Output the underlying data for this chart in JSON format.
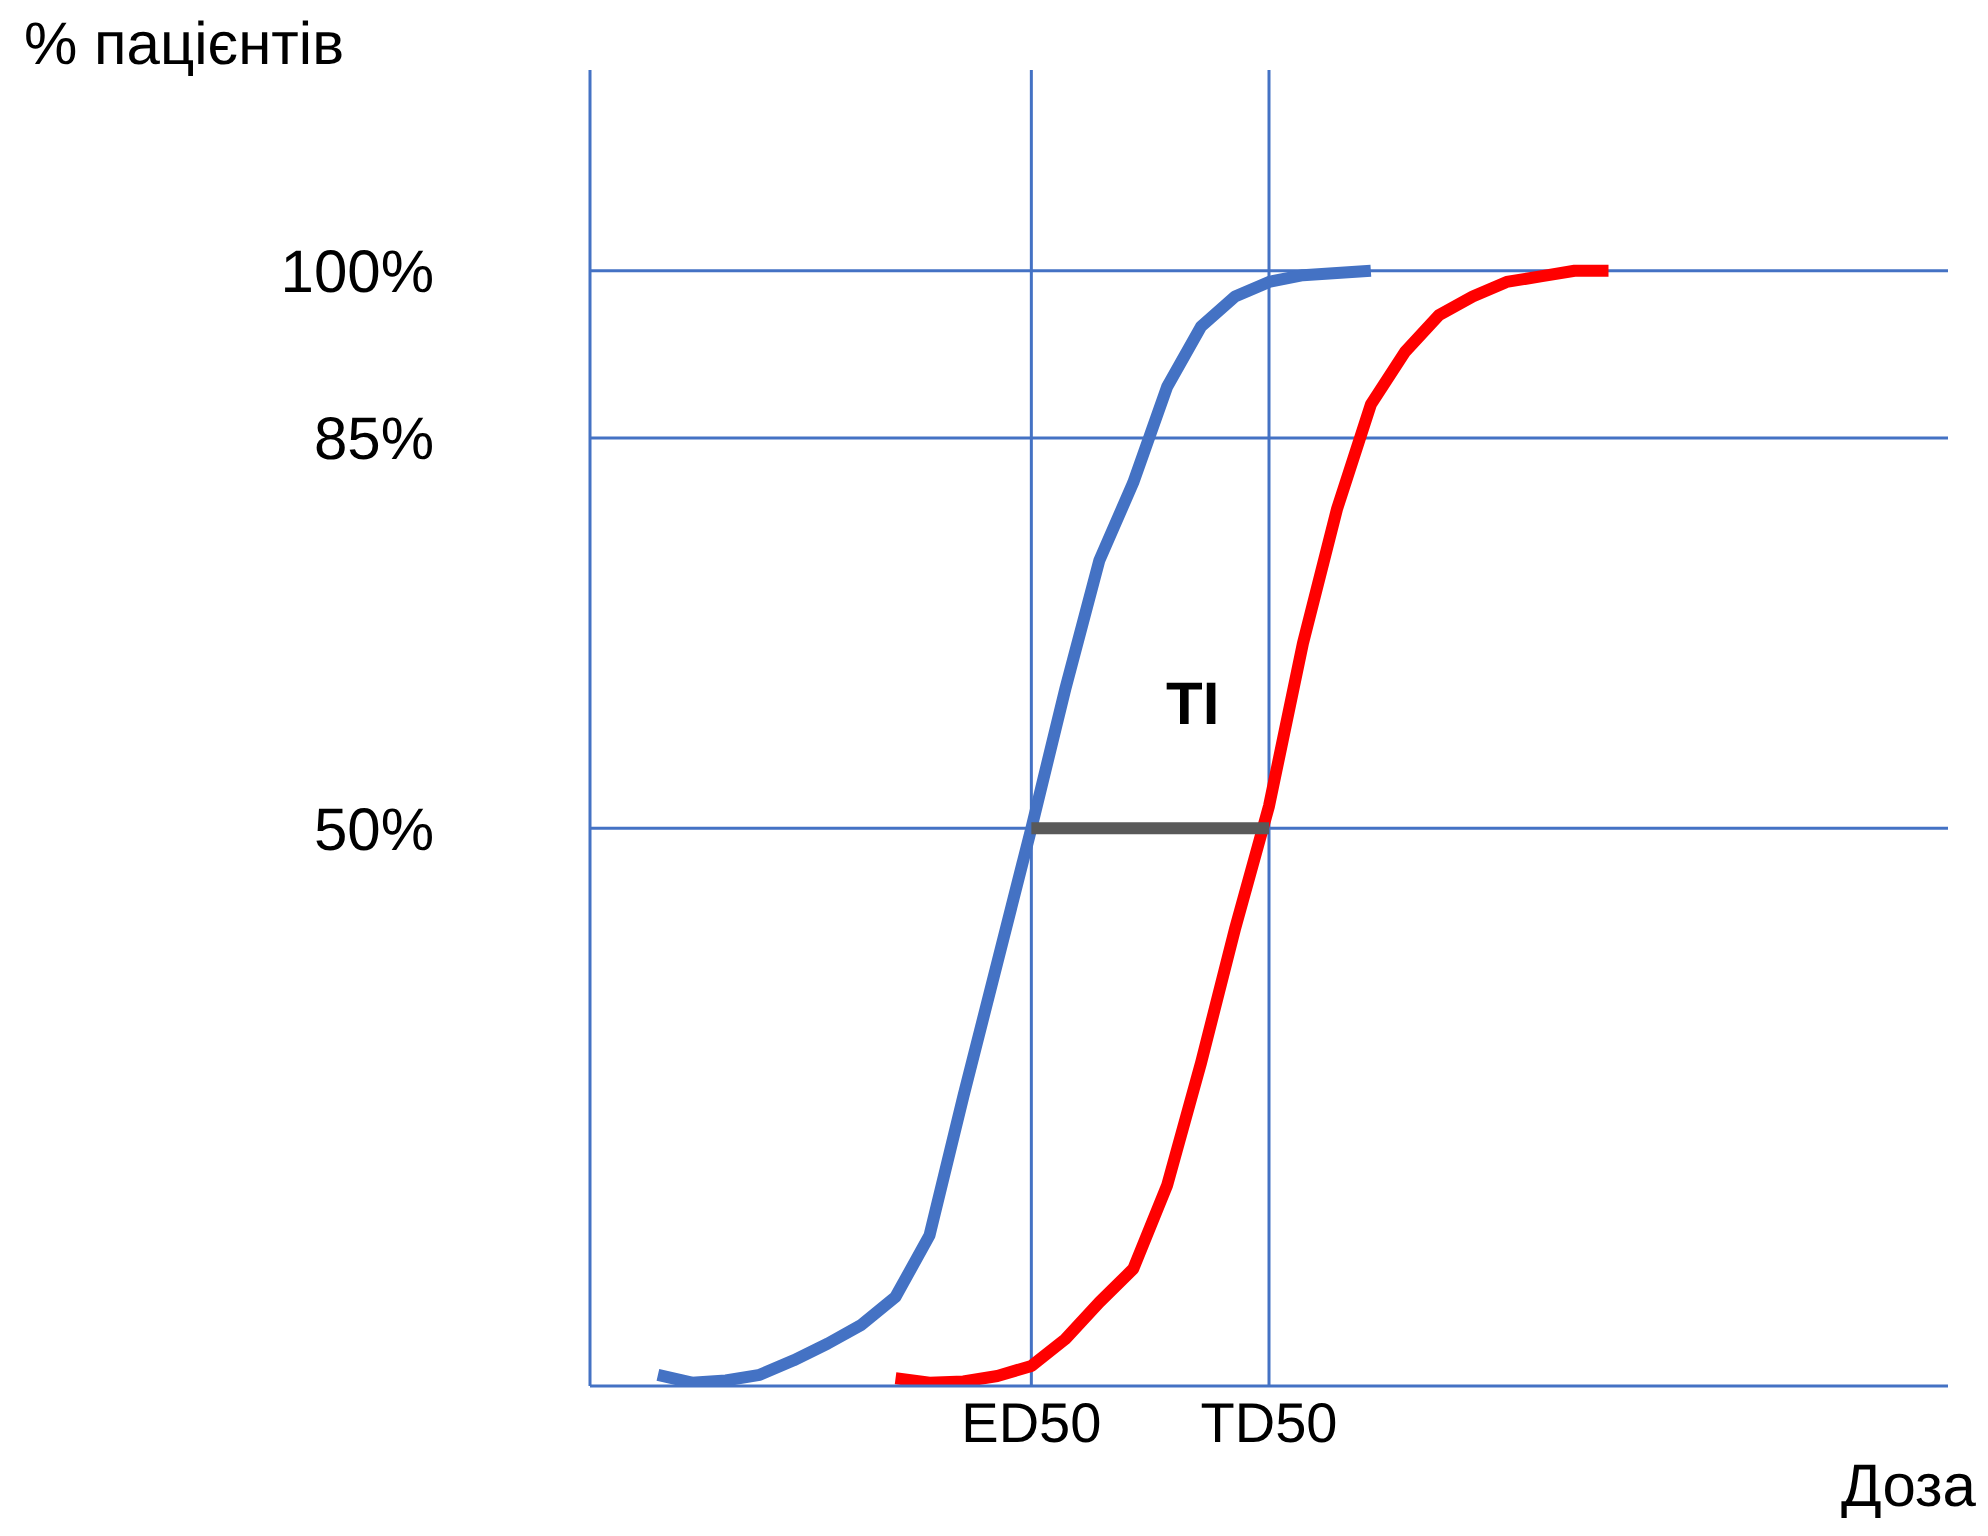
{
  "chart_data": {
    "type": "line",
    "xlabel": "Доза",
    "ylabel": "% пацієнтів",
    "categories": [
      null,
      null,
      null,
      null,
      null,
      null,
      null,
      null,
      null,
      null,
      null,
      null,
      null,
      "ED50",
      null,
      null,
      null,
      null,
      null,
      null,
      "TD50",
      null,
      null,
      null,
      null,
      null,
      null,
      null,
      null,
      null,
      null,
      null,
      null,
      null,
      null,
      null,
      null,
      null,
      null,
      null,
      null
    ],
    "series": [
      {
        "color": "#4472c4",
        "values": [
          null,
          null,
          1,
          0.3,
          0.5,
          1,
          2.3,
          3.8,
          5.5,
          8,
          13.5,
          26,
          38,
          50,
          62.5,
          74,
          81,
          89.6,
          95,
          97.7,
          99,
          99.6,
          99.8,
          100,
          null,
          null,
          null,
          null,
          null,
          null,
          null,
          null,
          null,
          null,
          null,
          null,
          null,
          null,
          null,
          null,
          null
        ]
      },
      {
        "color": "#ff0000",
        "values": [
          null,
          null,
          null,
          null,
          null,
          null,
          null,
          null,
          null,
          0.7,
          0.3,
          0.4,
          0.9,
          1.8,
          4.2,
          7.5,
          10.5,
          18,
          29,
          41,
          52,
          66.6,
          78.6,
          88,
          92.7,
          96,
          97.7,
          99,
          99.5,
          100,
          100,
          null,
          null,
          null,
          null,
          null,
          null,
          null,
          null,
          null,
          null
        ]
      },
      {
        "color": "#595959",
        "values": [
          null,
          null,
          null,
          null,
          null,
          null,
          null,
          null,
          null,
          null,
          null,
          null,
          null,
          50,
          null,
          null,
          null,
          null,
          null,
          null,
          50,
          null,
          null,
          null,
          null,
          null,
          null,
          null,
          null,
          null,
          null,
          null,
          null,
          null,
          null,
          null,
          null,
          null,
          null,
          null,
          null
        ]
      }
    ],
    "ylim": [
      0,
      118
    ],
    "yticks": [
      {
        "value": 50,
        "label": "50%"
      },
      {
        "value": 85,
        "label": "85%"
      },
      {
        "value": 100,
        "label": "100%"
      }
    ],
    "ref_lines": [
      {
        "axis": "y",
        "value": 100,
        "color": "#4472c4"
      },
      {
        "axis": "y",
        "value": 85,
        "color": "#4472c4"
      },
      {
        "axis": "y",
        "value": 50,
        "color": "#4472c4"
      },
      {
        "axis": "x",
        "value": "ED50",
        "color": "#4472c4"
      },
      {
        "axis": "x",
        "value": "TD50",
        "color": "#4472c4"
      }
    ],
    "annotations": [
      "TI"
    ]
  }
}
